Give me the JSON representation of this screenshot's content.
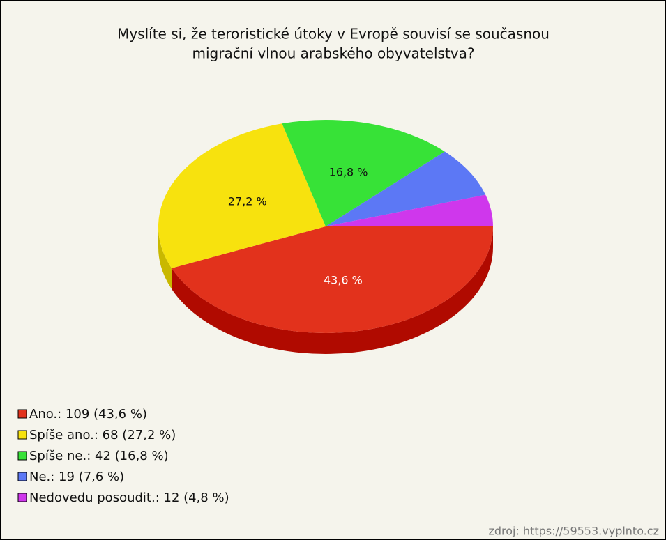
{
  "chart_data": {
    "type": "pie",
    "title": [
      "Myslíte si, že teroristické útoky v Evropě souvisí se současnou",
      "migrační vlnou arabského obyvatelstva?"
    ],
    "labels": [
      "Ano.: 109 (43,6 %)",
      "Spíše ano.: 68 (27,2 %)",
      "Spíše ne.: 42 (16,8 %)",
      "Ne.: 19 (7,6 %)",
      "Nedovedu posoudit.: 12 (4,8 %)"
    ],
    "values": [
      43.6,
      27.2,
      16.8,
      7.6,
      4.8
    ],
    "value_labels": [
      "43,6 %",
      "27,2 %",
      "16,8 %",
      null,
      null
    ],
    "colors": [
      "#e2321c",
      "#f7e20e",
      "#37e237",
      "#5c78f5",
      "#cf37ec"
    ],
    "side_colors": [
      "#b00a00",
      "#c9b800",
      "#20a820",
      "#3a50c0",
      "#9a20b0"
    ],
    "legend": "bottom-left",
    "source": "zdroj: https://59553.vyplnto.cz"
  }
}
